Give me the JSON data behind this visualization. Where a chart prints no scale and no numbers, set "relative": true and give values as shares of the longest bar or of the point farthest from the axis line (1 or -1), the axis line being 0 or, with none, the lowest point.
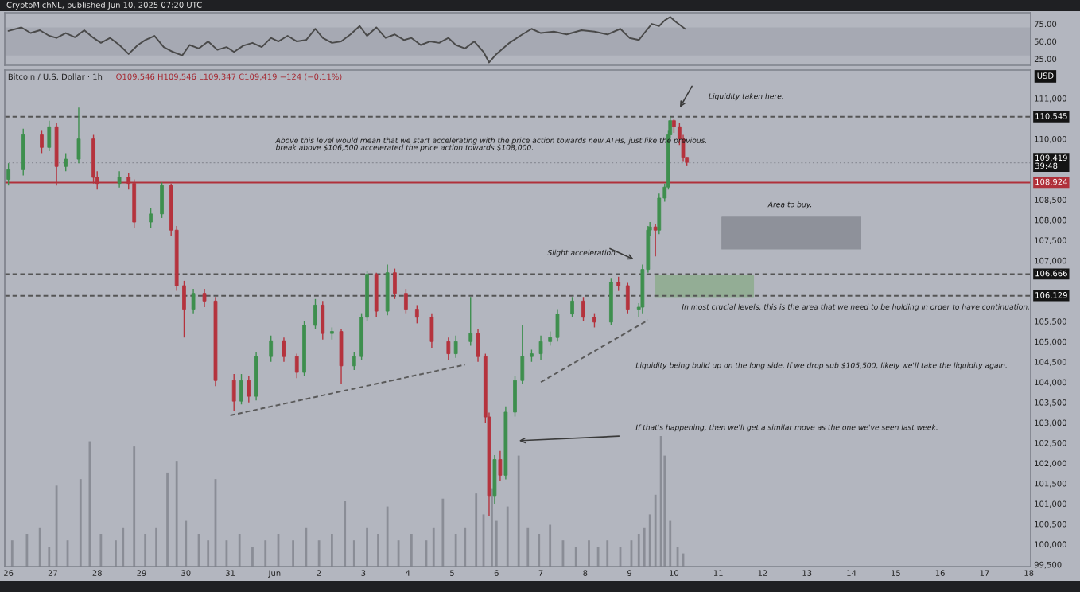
{
  "chart_data": [
    {
      "type": "line",
      "title": "CryptoMichNL, published Jun 10, 2025 07:20 UTC",
      "xlim": [
        "2025-05-25T22:00",
        "2025-06-18T01:00"
      ],
      "ylim": [
        16,
        91
      ],
      "yticks": [
        {
          "value": 25,
          "label": "25.00"
        },
        {
          "value": 50,
          "label": "50.00"
        },
        {
          "value": 75,
          "label": "75.00"
        }
      ],
      "tick_labels": "y",
      "bands": [
        {
          "axis": "y",
          "from": 30,
          "to": 70,
          "color": "#a6a9b3"
        }
      ],
      "series": [
        {
          "color": "#4a4a4a",
          "x": [
            "2025-05-26T00:00",
            "2025-05-26T07:00",
            "2025-05-26T12:00",
            "2025-05-26T17:00",
            "2025-05-26T22:00",
            "2025-05-27T02:00",
            "2025-05-27T07:00",
            "2025-05-27T12:00",
            "2025-05-27T17:00",
            "2025-05-27T22:00",
            "2025-05-28T02:00",
            "2025-05-28T07:00",
            "2025-05-28T12:00",
            "2025-05-28T17:00",
            "2025-05-28T22:00",
            "2025-05-29T02:00",
            "2025-05-29T07:00",
            "2025-05-29T12:00",
            "2025-05-29T17:00",
            "2025-05-29T22:00",
            "2025-05-30T02:00",
            "2025-05-30T07:00",
            "2025-05-30T12:00",
            "2025-05-30T17:00",
            "2025-05-30T22:00",
            "2025-05-31T02:00",
            "2025-05-31T07:00",
            "2025-05-31T12:00",
            "2025-05-31T17:00",
            "2025-05-31T22:00",
            "2025-06-01T02:00",
            "2025-06-01T07:00",
            "2025-06-01T12:00",
            "2025-06-01T17:00",
            "2025-06-01T22:00",
            "2025-06-02T02:00",
            "2025-06-02T07:00",
            "2025-06-02T12:00",
            "2025-06-02T17:00",
            "2025-06-02T22:00",
            "2025-06-03T02:00",
            "2025-06-03T07:00",
            "2025-06-03T12:00",
            "2025-06-03T17:00",
            "2025-06-03T22:00",
            "2025-06-04T02:00",
            "2025-06-04T07:00",
            "2025-06-04T12:00",
            "2025-06-04T17:00",
            "2025-06-04T22:00",
            "2025-06-05T02:00",
            "2025-06-05T07:00",
            "2025-06-05T12:00",
            "2025-06-05T17:00",
            "2025-06-05T20:00",
            "2025-06-06T00:00",
            "2025-06-06T07:00",
            "2025-06-06T14:00",
            "2025-06-06T19:00",
            "2025-06-07T00:00",
            "2025-06-07T07:00",
            "2025-06-07T14:00",
            "2025-06-07T22:00",
            "2025-06-08T05:00",
            "2025-06-08T12:00",
            "2025-06-08T19:00",
            "2025-06-09T00:00",
            "2025-06-09T05:00",
            "2025-06-09T08:00",
            "2025-06-09T12:00",
            "2025-06-09T16:00",
            "2025-06-09T19:00",
            "2025-06-09T22:00",
            "2025-06-10T01:00",
            "2025-06-10T04:00",
            "2025-06-10T06:00"
          ],
          "values": [
            65,
            70,
            62,
            66,
            58,
            55,
            62,
            56,
            66,
            55,
            48,
            55,
            45,
            32,
            45,
            52,
            58,
            42,
            35,
            30,
            45,
            40,
            50,
            38,
            42,
            35,
            44,
            48,
            42,
            55,
            50,
            58,
            50,
            52,
            68,
            55,
            48,
            50,
            60,
            72,
            58,
            70,
            55,
            60,
            52,
            55,
            45,
            50,
            48,
            55,
            45,
            40,
            50,
            35,
            20,
            32,
            48,
            60,
            68,
            62,
            64,
            60,
            66,
            64,
            60,
            68,
            55,
            52,
            62,
            75,
            72,
            80,
            85,
            78,
            72,
            68
          ]
        }
      ]
    },
    {
      "type": "candlestick",
      "title": "Bitcoin / U.S. Dollar · 1h",
      "subtitle": "O109,546 H109,546 L109,347 C109,419 −124 (−0.11%)",
      "ylabel": "USD",
      "xlim": [
        "2025-05-25T22:00",
        "2025-06-18T01:00"
      ],
      "ylim": [
        99450,
        111700
      ],
      "xticks": [
        {
          "value": "2025-05-26",
          "label": "26"
        },
        {
          "value": "2025-05-27",
          "label": "27"
        },
        {
          "value": "2025-05-28",
          "label": "28"
        },
        {
          "value": "2025-05-29",
          "label": "29"
        },
        {
          "value": "2025-05-30",
          "label": "30"
        },
        {
          "value": "2025-05-31",
          "label": "31"
        },
        {
          "value": "2025-06-01",
          "label": "Jun"
        },
        {
          "value": "2025-06-02",
          "label": "2"
        },
        {
          "value": "2025-06-03",
          "label": "3"
        },
        {
          "value": "2025-06-04",
          "label": "4"
        },
        {
          "value": "2025-06-05",
          "label": "5"
        },
        {
          "value": "2025-06-06",
          "label": "6"
        },
        {
          "value": "2025-06-07",
          "label": "7"
        },
        {
          "value": "2025-06-08",
          "label": "8"
        },
        {
          "value": "2025-06-09",
          "label": "9"
        },
        {
          "value": "2025-06-10",
          "label": "10"
        },
        {
          "value": "2025-06-11",
          "label": "11"
        },
        {
          "value": "2025-06-12",
          "label": "12"
        },
        {
          "value": "2025-06-13",
          "label": "13"
        },
        {
          "value": "2025-06-14",
          "label": "14"
        },
        {
          "value": "2025-06-15",
          "label": "15"
        },
        {
          "value": "2025-06-16",
          "label": "16"
        },
        {
          "value": "2025-06-17",
          "label": "17"
        },
        {
          "value": "2025-06-18",
          "label": "18"
        }
      ],
      "yticks": [
        {
          "value": 99500,
          "label": "99,500"
        },
        {
          "value": 100000,
          "label": "100,000"
        },
        {
          "value": 100500,
          "label": "100,500"
        },
        {
          "value": 101000,
          "label": "101,000"
        },
        {
          "value": 101500,
          "label": "101,500"
        },
        {
          "value": 102000,
          "label": "102,000"
        },
        {
          "value": 102500,
          "label": "102,500"
        },
        {
          "value": 103000,
          "label": "103,000"
        },
        {
          "value": 103500,
          "label": "103,500"
        },
        {
          "value": 104000,
          "label": "104,000"
        },
        {
          "value": 104500,
          "label": "104,500"
        },
        {
          "value": 105000,
          "label": "105,000"
        },
        {
          "value": 105500,
          "label": "105,500"
        },
        {
          "value": 107000,
          "label": "107,000"
        },
        {
          "value": 107500,
          "label": "107,500"
        },
        {
          "value": 108000,
          "label": "108,000"
        },
        {
          "value": 108500,
          "label": "108,500"
        },
        {
          "value": 110000,
          "label": "110,000"
        },
        {
          "value": 111000,
          "label": "111,000"
        }
      ],
      "x": [
        "2025-05-26T00:00",
        "2025-05-26T08:00",
        "2025-05-26T18:00",
        "2025-05-26T22:00",
        "2025-05-27T02:00",
        "2025-05-27T07:00",
        "2025-05-27T14:00",
        "2025-05-27T22:00",
        "2025-05-28T00:00",
        "2025-05-28T12:00",
        "2025-05-28T17:00",
        "2025-05-28T20:00",
        "2025-05-29T05:00",
        "2025-05-29T11:00",
        "2025-05-29T16:00",
        "2025-05-29T19:00",
        "2025-05-29T23:00",
        "2025-05-30T04:00",
        "2025-05-30T10:00",
        "2025-05-30T16:00",
        "2025-05-31T02:00",
        "2025-05-31T06:00",
        "2025-05-31T10:00",
        "2025-05-31T14:00",
        "2025-05-31T22:00",
        "2025-06-01T05:00",
        "2025-06-01T12:00",
        "2025-06-01T16:00",
        "2025-06-01T22:00",
        "2025-06-02T02:00",
        "2025-06-02T07:00",
        "2025-06-02T12:00",
        "2025-06-02T19:00",
        "2025-06-02T23:00",
        "2025-06-03T02:00",
        "2025-06-03T07:00",
        "2025-06-03T13:00",
        "2025-06-03T17:00",
        "2025-06-03T23:00",
        "2025-06-04T05:00",
        "2025-06-04T13:00",
        "2025-06-04T22:00",
        "2025-06-05T02:00",
        "2025-06-05T10:00",
        "2025-06-05T14:00",
        "2025-06-05T18:00",
        "2025-06-05T20:00",
        "2025-06-05T23:00",
        "2025-06-06T02:00",
        "2025-06-06T05:00",
        "2025-06-06T10:00",
        "2025-06-06T14:00",
        "2025-06-06T19:00",
        "2025-06-07T00:00",
        "2025-06-07T05:00",
        "2025-06-07T09:00",
        "2025-06-07T17:00",
        "2025-06-07T23:00",
        "2025-06-08T05:00",
        "2025-06-08T14:00",
        "2025-06-08T18:00",
        "2025-06-08T23:00",
        "2025-06-09T05:00",
        "2025-06-09T07:00",
        "2025-06-09T10:00",
        "2025-06-09T11:00",
        "2025-06-09T14:00",
        "2025-06-09T16:00",
        "2025-06-09T19:00",
        "2025-06-09T21:00",
        "2025-06-09T22:00",
        "2025-06-10T00:00",
        "2025-06-10T03:00",
        "2025-06-10T05:00",
        "2025-06-10T07:00"
      ],
      "ohlc": [
        [
          109000,
          109400,
          108850,
          109240
        ],
        [
          109240,
          110250,
          109100,
          110100
        ],
        [
          110100,
          110200,
          109650,
          109790
        ],
        [
          109790,
          110450,
          109700,
          110300
        ],
        [
          110300,
          110400,
          108850,
          109320
        ],
        [
          109320,
          109650,
          109200,
          109500
        ],
        [
          109500,
          110770,
          109400,
          110000
        ],
        [
          110000,
          110100,
          108900,
          109050
        ],
        [
          109050,
          109200,
          108750,
          108900
        ],
        [
          108900,
          109200,
          108800,
          109050
        ],
        [
          109050,
          109150,
          108750,
          108900
        ],
        [
          108900,
          109000,
          107800,
          107950
        ],
        [
          107950,
          108300,
          107800,
          108150
        ],
        [
          108150,
          108924,
          108050,
          108850
        ],
        [
          108850,
          108900,
          107600,
          107750
        ],
        [
          107750,
          107850,
          106250,
          106380
        ],
        [
          106380,
          106500,
          105100,
          105800
        ],
        [
          105800,
          106300,
          105700,
          106190
        ],
        [
          106190,
          106300,
          105850,
          106000
        ],
        [
          106000,
          106100,
          103900,
          104040
        ],
        [
          104040,
          104200,
          103300,
          103530
        ],
        [
          103530,
          104200,
          103450,
          104040
        ],
        [
          104040,
          104150,
          103500,
          103650
        ],
        [
          103650,
          104750,
          103550,
          104630
        ],
        [
          104630,
          105150,
          104500,
          105020
        ],
        [
          105020,
          105100,
          104500,
          104630
        ],
        [
          104630,
          104700,
          104100,
          104240
        ],
        [
          104240,
          105500,
          104150,
          105400
        ],
        [
          105400,
          106050,
          105300,
          105900
        ],
        [
          105900,
          106000,
          105050,
          105200
        ],
        [
          105200,
          105350,
          105050,
          105250
        ],
        [
          105250,
          105300,
          103960,
          104400
        ],
        [
          104400,
          104750,
          104300,
          104630
        ],
        [
          104630,
          105700,
          104550,
          105600
        ],
        [
          105600,
          106750,
          105500,
          106660
        ],
        [
          106660,
          106700,
          105600,
          105750
        ],
        [
          105750,
          106900,
          105650,
          106700
        ],
        [
          106700,
          106800,
          106050,
          106190
        ],
        [
          106190,
          106300,
          105700,
          105800
        ],
        [
          105800,
          105900,
          105450,
          105600
        ],
        [
          105600,
          105700,
          104850,
          105000
        ],
        [
          105000,
          105100,
          104550,
          104700
        ],
        [
          104700,
          105150,
          104600,
          105000
        ],
        [
          105000,
          106100,
          104900,
          105200
        ],
        [
          105200,
          105300,
          104500,
          104630
        ],
        [
          104630,
          104700,
          103000,
          103140
        ],
        [
          103140,
          103250,
          100700,
          101200
        ],
        [
          101200,
          102200,
          101000,
          102090
        ],
        [
          102090,
          102300,
          101550,
          101700
        ],
        [
          101700,
          103400,
          101600,
          103260
        ],
        [
          103260,
          104150,
          103150,
          104040
        ],
        [
          104040,
          105400,
          103950,
          104630
        ],
        [
          104630,
          104800,
          104500,
          104700
        ],
        [
          104700,
          105150,
          104550,
          105000
        ],
        [
          105000,
          105250,
          104900,
          105100
        ],
        [
          105100,
          105800,
          105000,
          105680
        ],
        [
          105680,
          106100,
          105600,
          106000
        ],
        [
          106000,
          106100,
          105500,
          105600
        ],
        [
          105600,
          105700,
          105350,
          105480
        ],
        [
          105480,
          106550,
          105400,
          106460
        ],
        [
          106460,
          106600,
          106250,
          106380
        ],
        [
          106380,
          106450,
          105700,
          105800
        ],
        [
          105800,
          105950,
          105600,
          105850
        ],
        [
          105850,
          106900,
          105700,
          106780
        ],
        [
          106780,
          107850,
          106700,
          107750
        ],
        [
          107750,
          107950,
          107600,
          107830
        ],
        [
          107830,
          107900,
          107100,
          107750
        ],
        [
          107750,
          108650,
          107650,
          108540
        ],
        [
          108540,
          108900,
          108450,
          108810
        ],
        [
          108810,
          110200,
          108750,
          110100
        ],
        [
          110100,
          110545,
          110000,
          110450
        ],
        [
          110450,
          110500,
          110150,
          110300
        ],
        [
          110300,
          110400,
          109850,
          110000
        ],
        [
          110000,
          110100,
          109450,
          109546
        ],
        [
          109546,
          109546,
          109347,
          109419
        ]
      ],
      "series": [
        {
          "type": "line",
          "color": "#5a5a5a",
          "line_style": "dashed",
          "x": [
            "2025-05-31T00:00",
            "2025-06-05T07:00"
          ],
          "values": [
            103180,
            104430
          ]
        },
        {
          "type": "line",
          "color": "#5a5a5a",
          "line_style": "dashed",
          "x": [
            "2025-06-07T00:00",
            "2025-06-09T10:00"
          ],
          "values": [
            104000,
            105530
          ]
        },
        {
          "type": "area",
          "color": "#8e919a",
          "x": [
            "2025-06-11T02:00",
            "2025-06-14T05:00"
          ],
          "values": [
            null,
            null
          ],
          "lower": [
            107285,
            107285
          ],
          "upper": [
            108068,
            108068
          ]
        },
        {
          "type": "area",
          "color": "#93ad95",
          "x": [
            "2025-06-09T14:00",
            "2025-06-11T19:00"
          ],
          "values": [
            null,
            null
          ],
          "lower": [
            106110,
            106110
          ],
          "upper": [
            106620,
            106620
          ]
        }
      ],
      "ref_lines": [
        {
          "axis": "y",
          "value": 110545,
          "label": "110,545",
          "color": "#555555",
          "line_style": "dashed"
        },
        {
          "axis": "y",
          "value": 109419,
          "label": "109,419\n39:48",
          "color": "#8a8d96",
          "line_style": "dotted"
        },
        {
          "axis": "y",
          "value": 108924,
          "label": "108,924",
          "color": "#b0303a",
          "line_style": "solid"
        },
        {
          "axis": "y",
          "value": 106666,
          "label": "106,666",
          "color": "#555555",
          "line_style": "dashed"
        },
        {
          "axis": "y",
          "value": 106129,
          "label": "106,129",
          "color": "#555555",
          "line_style": "dashed"
        }
      ],
      "annotations": [
        "Liquidity taken here.",
        "Slight acceleration.",
        "If that's happening, then we'll get a similar move as the one we've seen last week.",
        "Above this level would mean that we start accelerating with the price action towards new ATHs, just like the previous.\nbreak above $106,500 accelerated the price action towards $108,000.",
        "Liquidity being build up on the long side. If we drop sub $105,500, likely we'll take the liquidity again.",
        "Area to buy.",
        "In most crucial levels, this is the area that we need to be holding in order to have continuation."
      ]
    },
    {
      "type": "bar",
      "relative": true,
      "tick_labels": false,
      "color": "#8a8d96",
      "xlim": [
        "2025-05-25T22:00",
        "2025-06-18T01:00"
      ],
      "x": [
        "2025-05-26T02:00",
        "2025-05-26T10:00",
        "2025-05-26T17:00",
        "2025-05-26T22:00",
        "2025-05-27T02:00",
        "2025-05-27T08:00",
        "2025-05-27T15:00",
        "2025-05-27T20:00",
        "2025-05-28T02:00",
        "2025-05-28T10:00",
        "2025-05-28T14:00",
        "2025-05-28T20:00",
        "2025-05-29T02:00",
        "2025-05-29T08:00",
        "2025-05-29T14:00",
        "2025-05-29T19:00",
        "2025-05-30T00:00",
        "2025-05-30T07:00",
        "2025-05-30T12:00",
        "2025-05-30T16:00",
        "2025-05-30T22:00",
        "2025-05-31T05:00",
        "2025-05-31T12:00",
        "2025-05-31T19:00",
        "2025-06-01T02:00",
        "2025-06-01T10:00",
        "2025-06-01T17:00",
        "2025-06-02T00:00",
        "2025-06-02T07:00",
        "2025-06-02T14:00",
        "2025-06-02T19:00",
        "2025-06-03T02:00",
        "2025-06-03T08:00",
        "2025-06-03T13:00",
        "2025-06-03T19:00",
        "2025-06-04T02:00",
        "2025-06-04T10:00",
        "2025-06-04T14:00",
        "2025-06-04T19:00",
        "2025-06-05T02:00",
        "2025-06-05T07:00",
        "2025-06-05T13:00",
        "2025-06-05T17:00",
        "2025-06-05T21:30",
        "2025-06-06T00:00",
        "2025-06-06T06:00",
        "2025-06-06T12:00",
        "2025-06-06T17:00",
        "2025-06-06T23:00",
        "2025-06-07T05:00",
        "2025-06-07T12:00",
        "2025-06-07T19:00",
        "2025-06-08T02:00",
        "2025-06-08T07:00",
        "2025-06-08T12:00",
        "2025-06-08T19:00",
        "2025-06-09T01:00",
        "2025-06-09T05:00",
        "2025-06-09T08:00",
        "2025-06-09T11:00",
        "2025-06-09T14:00",
        "2025-06-09T17:00",
        "2025-06-09T19:00",
        "2025-06-09T22:00",
        "2025-06-10T02:00",
        "2025-06-10T05:00"
      ],
      "values": [
        0.2,
        0.25,
        0.3,
        0.15,
        0.62,
        0.2,
        0.67,
        0.96,
        0.25,
        0.2,
        0.3,
        0.92,
        0.25,
        0.3,
        0.72,
        0.81,
        0.35,
        0.25,
        0.2,
        0.67,
        0.2,
        0.25,
        0.15,
        0.2,
        0.25,
        0.2,
        0.3,
        0.2,
        0.25,
        0.5,
        0.2,
        0.3,
        0.25,
        0.46,
        0.2,
        0.25,
        0.2,
        0.3,
        0.52,
        0.25,
        0.3,
        0.56,
        0.4,
        0.6,
        0.35,
        0.46,
        0.85,
        0.3,
        0.25,
        0.32,
        0.2,
        0.15,
        0.2,
        0.15,
        0.2,
        0.15,
        0.2,
        0.25,
        0.3,
        0.4,
        0.55,
        1,
        0.85,
        0.35,
        0.15,
        0.1
      ]
    }
  ]
}
